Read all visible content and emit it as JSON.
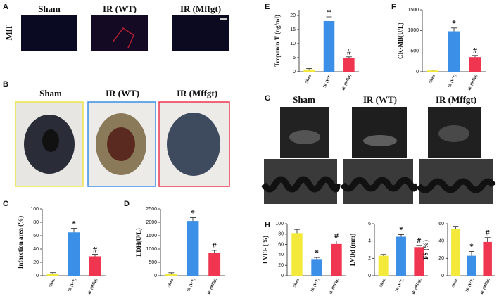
{
  "panels": {
    "labels": [
      "A",
      "B",
      "C",
      "D",
      "E",
      "F",
      "G",
      "H"
    ],
    "a": {
      "row_label": "Mff",
      "columns": [
        "Sham",
        "IR (WT)",
        "IR (Mffgt)"
      ]
    },
    "b": {
      "columns": [
        "Sham",
        "IR (WT)",
        "IR (Mffgt)"
      ]
    },
    "g": {
      "columns": [
        "Sham",
        "IR (WT)",
        "IR (Mffgt)"
      ]
    }
  },
  "chart_data": [
    {
      "type": "bar",
      "ylabel": "Infarction area (%)",
      "categories": [
        "Sham",
        "IR (WT)",
        "IR (Mffgt)"
      ],
      "values": [
        3,
        65,
        29
      ],
      "errors": [
        1.5,
        6,
        3
      ],
      "colors": [
        "#f2e93b",
        "#3b8fe6",
        "#ef3550"
      ],
      "significance": [
        null,
        "*",
        "#"
      ],
      "ylim": [
        0,
        100
      ],
      "yticks": [
        0,
        20,
        40,
        60,
        80,
        100
      ]
    },
    {
      "type": "bar",
      "ylabel": "LDH(U/L)",
      "categories": [
        "Sham",
        "IR (WT)",
        "IR (Mffgt)"
      ],
      "values": [
        80,
        2050,
        860
      ],
      "errors": [
        30,
        120,
        90
      ],
      "colors": [
        "#f2e93b",
        "#3b8fe6",
        "#ef3550"
      ],
      "significance": [
        null,
        "*",
        "#"
      ],
      "ylim": [
        0,
        2500
      ],
      "yticks": [
        0,
        500,
        1000,
        1500,
        2000,
        2500
      ]
    },
    {
      "type": "bar",
      "ylabel": "Troponin T (ng/ml)",
      "categories": [
        "Sham",
        "IR (WT)",
        "IR (Mffgt)"
      ],
      "values": [
        0.8,
        18,
        4.8
      ],
      "errors": [
        0.3,
        1.5,
        0.5
      ],
      "colors": [
        "#f2e93b",
        "#3b8fe6",
        "#ef3550"
      ],
      "significance": [
        null,
        "*",
        "#"
      ],
      "ylim": [
        0,
        22
      ],
      "yticks": [
        0,
        5,
        10,
        15,
        20
      ]
    },
    {
      "type": "bar",
      "ylabel": "CK-MB(U/L)",
      "categories": [
        "Sham",
        "IR (WT)",
        "IR (Mffgt)"
      ],
      "values": [
        30,
        980,
        355
      ],
      "errors": [
        10,
        80,
        40
      ],
      "colors": [
        "#f2e93b",
        "#3b8fe6",
        "#ef3550"
      ],
      "significance": [
        null,
        "*",
        "#"
      ],
      "ylim": [
        0,
        1500
      ],
      "yticks": [
        0,
        500,
        1000,
        1500
      ]
    },
    {
      "type": "bar",
      "ylabel": "LVEF (%)",
      "categories": [
        "Sham",
        "IR (WT)",
        "IR (Mffgt)"
      ],
      "values": [
        82,
        32,
        61
      ],
      "errors": [
        7,
        3,
        6
      ],
      "colors": [
        "#f2e93b",
        "#3b8fe6",
        "#ef3550"
      ],
      "significance": [
        null,
        "*",
        "#"
      ],
      "ylim": [
        0,
        100
      ],
      "yticks": [
        0,
        20,
        40,
        60,
        80,
        100
      ]
    },
    {
      "type": "bar",
      "ylabel": "LVDd (mm)",
      "categories": [
        "Sham",
        "IR (WT)",
        "IR (Mffgt)"
      ],
      "values": [
        2.3,
        4.5,
        3.3
      ],
      "errors": [
        0.15,
        0.25,
        0.2
      ],
      "colors": [
        "#f2e93b",
        "#3b8fe6",
        "#ef3550"
      ],
      "significance": [
        null,
        "*",
        "#"
      ],
      "ylim": [
        0,
        6
      ],
      "yticks": [
        0,
        2,
        4,
        6
      ]
    },
    {
      "type": "bar",
      "ylabel": "FS (%)",
      "categories": [
        "Sham",
        "IR (WT)",
        "IR (Mffgt)"
      ],
      "values": [
        54,
        23,
        39
      ],
      "errors": [
        3,
        5,
        5
      ],
      "colors": [
        "#f2e93b",
        "#3b8fe6",
        "#ef3550"
      ],
      "significance": [
        null,
        "*",
        "#"
      ],
      "ylim": [
        0,
        60
      ],
      "yticks": [
        0,
        20,
        40,
        60
      ]
    }
  ]
}
